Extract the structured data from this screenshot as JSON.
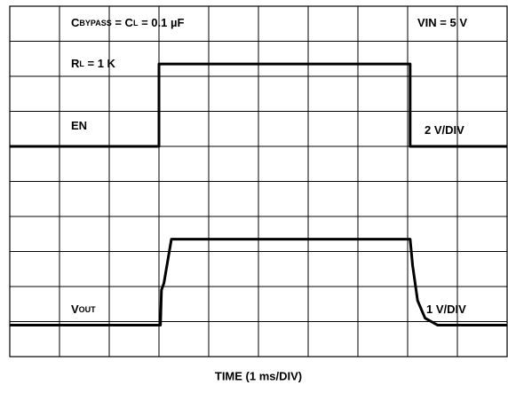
{
  "chart_data": {
    "type": "line",
    "x_label": "TIME (1 ms/DIV)",
    "xlim": [
      0,
      10
    ],
    "ylim": [
      0,
      10
    ],
    "xticks": [
      0,
      1,
      2,
      3,
      4,
      5,
      6,
      7,
      8,
      9,
      10
    ],
    "yticks": [
      0,
      1,
      2,
      3,
      4,
      5,
      6,
      7,
      8,
      9,
      10
    ],
    "grid": true,
    "annotations": [
      {
        "parts": [
          {
            "text": "C"
          },
          {
            "text": "BYPASS",
            "sub": true
          },
          {
            "text": " = C"
          },
          {
            "text": "L",
            "sub": true
          },
          {
            "text": " = 0.1 µF"
          }
        ]
      },
      {
        "parts": [
          {
            "text": "VIN = 5 V"
          }
        ]
      },
      {
        "parts": [
          {
            "text": "R"
          },
          {
            "text": "L",
            "sub": true
          },
          {
            "text": " = 1 K"
          }
        ]
      },
      {
        "parts": [
          {
            "text": "EN"
          }
        ]
      },
      {
        "parts": [
          {
            "text": "2 V/DIV"
          }
        ]
      },
      {
        "parts": [
          {
            "text": "V"
          },
          {
            "text": "OUT",
            "sub": true
          }
        ]
      },
      {
        "parts": [
          {
            "text": "1 V/DIV"
          }
        ]
      }
    ],
    "series": [
      {
        "name": "EN",
        "color": "#000000",
        "x": [
          0,
          3,
          3,
          8.05,
          8.05,
          10
        ],
        "values": [
          6,
          6,
          8.35,
          8.35,
          6,
          6
        ]
      },
      {
        "name": "VOUT",
        "color": "#000000",
        "x": [
          0,
          3.03,
          3.05,
          3.1,
          3.25,
          8.05,
          8.1,
          8.2,
          8.35,
          8.6,
          10
        ],
        "values": [
          0.9,
          0.9,
          1.9,
          2.1,
          3.35,
          3.35,
          2.6,
          1.6,
          1.1,
          0.9,
          0.9
        ]
      }
    ]
  }
}
